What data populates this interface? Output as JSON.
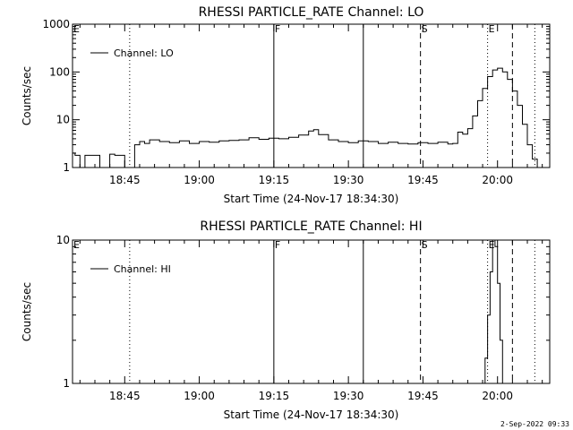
{
  "chart_data": [
    {
      "type": "line",
      "title": "RHESSI PARTICLE_RATE Channel: LO",
      "xlabel": "Start Time (24-Nov-17 18:34:30)",
      "ylabel": "Counts/sec",
      "yscale": "log",
      "ylim": [
        1,
        1000
      ],
      "y_ticks": [
        1,
        10,
        100,
        1000
      ],
      "y_tick_labels": [
        "1",
        "10",
        "100",
        "1000"
      ],
      "xlim": [
        "18:34:30",
        "20:10:30"
      ],
      "x_ticks": [
        "18:45",
        "19:00",
        "19:15",
        "19:30",
        "19:45",
        "20:00"
      ],
      "legend": {
        "label": "Channel: LO",
        "position": "top-left"
      },
      "series": [
        {
          "name": "Channel: LO",
          "x": [
            "18:34:30",
            "18:35:00",
            "18:36:00",
            "18:37:00",
            "18:38:00",
            "18:39:00",
            "18:40:00",
            "18:41:00",
            "18:42:00",
            "18:43:00",
            "18:44:00",
            "18:45:00",
            "18:46:00",
            "18:47:00",
            "18:48:00",
            "18:49:00",
            "18:50:00",
            "18:52:00",
            "18:54:00",
            "18:56:00",
            "18:58:00",
            "19:00:00",
            "19:02:00",
            "19:04:00",
            "19:06:00",
            "19:08:00",
            "19:10:00",
            "19:12:00",
            "19:14:00",
            "19:16:00",
            "19:18:00",
            "19:20:00",
            "19:22:00",
            "19:23:00",
            "19:24:00",
            "19:26:00",
            "19:28:00",
            "19:30:00",
            "19:32:00",
            "19:34:00",
            "19:36:00",
            "19:38:00",
            "19:40:00",
            "19:42:00",
            "19:44:00",
            "19:46:00",
            "19:48:00",
            "19:50:00",
            "19:51:00",
            "19:52:00",
            "19:53:00",
            "19:54:00",
            "19:55:00",
            "19:56:00",
            "19:57:00",
            "19:58:00",
            "19:59:00",
            "20:00:00",
            "20:01:00",
            "20:02:00",
            "20:03:00",
            "20:04:00",
            "20:05:00",
            "20:06:00",
            "20:07:00",
            "20:08:00"
          ],
          "y": [
            2,
            1.8,
            1,
            1.8,
            1.8,
            1.8,
            1,
            1,
            1.9,
            1.8,
            1.8,
            1,
            1,
            3,
            3.5,
            3.2,
            3.8,
            3.5,
            3.3,
            3.6,
            3.2,
            3.5,
            3.4,
            3.6,
            3.7,
            3.8,
            4.2,
            3.9,
            4.1,
            4,
            4.3,
            4.8,
            5.8,
            6.2,
            4.9,
            3.8,
            3.5,
            3.3,
            3.6,
            3.5,
            3.2,
            3.4,
            3.2,
            3.1,
            3.3,
            3.2,
            3.4,
            3.1,
            3.2,
            5.5,
            5,
            6.5,
            12,
            25,
            45,
            80,
            110,
            120,
            100,
            70,
            40,
            20,
            8,
            3,
            1.5,
            1
          ]
        }
      ],
      "vlines": [
        {
          "label": "E",
          "x": "18:34:30",
          "style": "solid"
        },
        {
          "label": "",
          "x": "18:46:00",
          "style": "dotted"
        },
        {
          "label": "F",
          "x": "19:15:00",
          "style": "solid"
        },
        {
          "label": "",
          "x": "19:33:00",
          "style": "solid"
        },
        {
          "label": "S",
          "x": "19:44:30",
          "style": "dashed"
        },
        {
          "label": "E",
          "x": "19:58:00",
          "style": "dotted"
        },
        {
          "label": "",
          "x": "20:03:00",
          "style": "dashed"
        },
        {
          "label": "",
          "x": "20:07:30",
          "style": "dotted"
        }
      ]
    },
    {
      "type": "line",
      "title": "RHESSI PARTICLE_RATE Channel: HI",
      "xlabel": "Start Time (24-Nov-17 18:34:30)",
      "ylabel": "Counts/sec",
      "yscale": "log",
      "ylim": [
        1,
        10
      ],
      "y_ticks": [
        1,
        10
      ],
      "y_tick_labels": [
        "1",
        "10"
      ],
      "xlim": [
        "18:34:30",
        "20:10:30"
      ],
      "x_ticks": [
        "18:45",
        "19:00",
        "19:15",
        "19:30",
        "19:45",
        "20:00"
      ],
      "legend": {
        "label": "Channel: HI",
        "position": "top-left"
      },
      "series": [
        {
          "name": "Channel: HI",
          "x": [
            "19:57:00",
            "19:57:30",
            "19:58:00",
            "19:58:30",
            "19:59:00",
            "19:59:30",
            "20:00:00",
            "20:00:30",
            "20:01:00"
          ],
          "y": [
            1,
            1.5,
            3,
            6,
            10,
            9,
            5,
            2,
            1
          ]
        }
      ],
      "vlines": [
        {
          "label": "E",
          "x": "18:34:30",
          "style": "solid"
        },
        {
          "label": "",
          "x": "18:46:00",
          "style": "dotted"
        },
        {
          "label": "F",
          "x": "19:15:00",
          "style": "solid"
        },
        {
          "label": "",
          "x": "19:33:00",
          "style": "solid"
        },
        {
          "label": "S",
          "x": "19:44:30",
          "style": "dashed"
        },
        {
          "label": "E",
          "x": "19:58:00",
          "style": "dotted"
        },
        {
          "label": "",
          "x": "20:03:00",
          "style": "dashed"
        },
        {
          "label": "",
          "x": "20:07:30",
          "style": "dotted"
        }
      ]
    }
  ],
  "footer": {
    "timestamp": "2-Sep-2022 09:33"
  }
}
